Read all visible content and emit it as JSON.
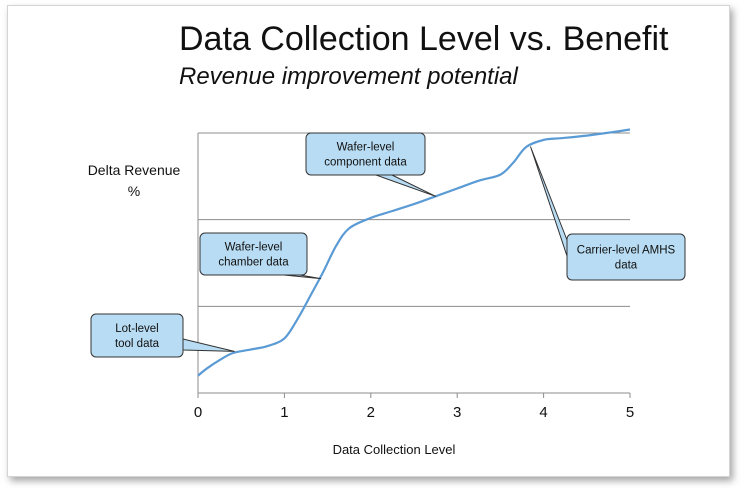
{
  "chart_data": {
    "type": "line",
    "title": "Data Collection Level vs. Benefit",
    "subtitle": "Revenue improvement potential",
    "xlabel": "Data Collection Level",
    "ylabel": "Delta Revenue %",
    "xlim": [
      0,
      5
    ],
    "ylim": [
      0,
      3
    ],
    "x_ticks": [
      "0",
      "1",
      "2",
      "3",
      "4",
      "5"
    ],
    "grid": "horizontal",
    "series": [
      {
        "color": "#5b9bd5",
        "x": [
          0,
          0.1,
          0.25,
          0.4,
          0.6,
          0.8,
          1.0,
          1.15,
          1.3,
          1.45,
          1.6,
          1.75,
          2.0,
          2.25,
          2.5,
          2.75,
          3.0,
          3.25,
          3.5,
          3.65,
          3.8,
          4.0,
          4.2,
          4.5,
          4.8,
          5.0
        ],
        "y": [
          0.2,
          0.28,
          0.38,
          0.46,
          0.5,
          0.54,
          0.63,
          0.85,
          1.12,
          1.4,
          1.7,
          1.9,
          2.02,
          2.1,
          2.18,
          2.27,
          2.36,
          2.45,
          2.52,
          2.66,
          2.84,
          2.92,
          2.94,
          2.97,
          3.01,
          3.04
        ]
      }
    ],
    "annotations": [
      {
        "lines": [
          "Lot-level",
          "tool data"
        ],
        "x": 0.42,
        "y": 0.48
      },
      {
        "lines": [
          "Wafer-level",
          "chamber data"
        ],
        "x": 1.42,
        "y": 1.32
      },
      {
        "lines": [
          "Wafer-level",
          "component data"
        ],
        "x": 2.75,
        "y": 2.27
      },
      {
        "lines": [
          "Carrier-level AMHS",
          "data"
        ],
        "x": 3.85,
        "y": 2.84
      }
    ]
  }
}
